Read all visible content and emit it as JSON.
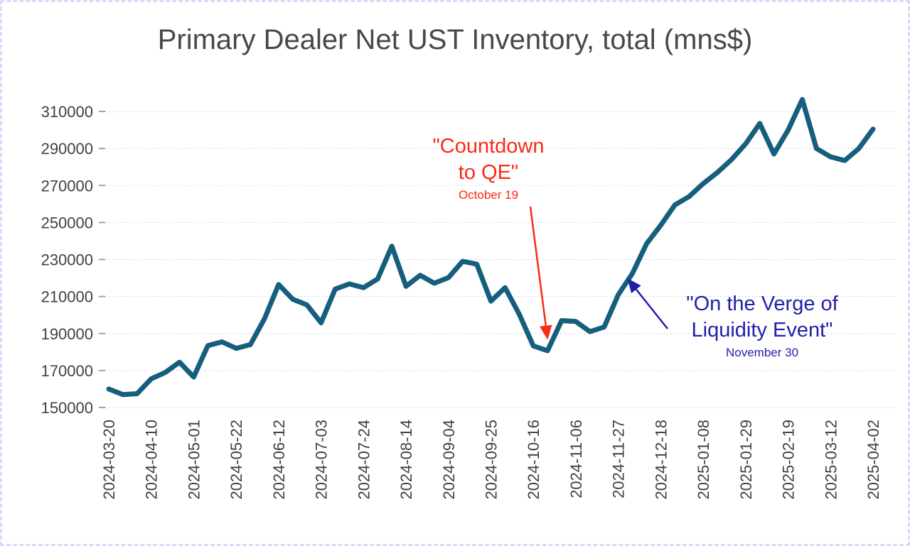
{
  "title": "Primary Dealer Net UST Inventory, total (mns$)",
  "chart_data": {
    "type": "line",
    "series_name": "Primary Dealer Net UST Inventory total (mns$)",
    "line_color": "#165e7d",
    "grid": true,
    "ylim": [
      150000,
      310000
    ],
    "ytick_step": 20000,
    "xtick_every": 3,
    "x": [
      "2024-03-20",
      "2024-03-27",
      "2024-04-03",
      "2024-04-10",
      "2024-04-17",
      "2024-04-24",
      "2024-05-01",
      "2024-05-08",
      "2024-05-15",
      "2024-05-22",
      "2024-05-29",
      "2024-06-05",
      "2024-06-12",
      "2024-06-19",
      "2024-06-26",
      "2024-07-03",
      "2024-07-10",
      "2024-07-17",
      "2024-07-24",
      "2024-07-31",
      "2024-08-07",
      "2024-08-14",
      "2024-08-21",
      "2024-08-28",
      "2024-09-04",
      "2024-09-11",
      "2024-09-18",
      "2024-09-25",
      "2024-10-02",
      "2024-10-09",
      "2024-10-16",
      "2024-10-23",
      "2024-10-30",
      "2024-11-06",
      "2024-11-13",
      "2024-11-20",
      "2024-11-27",
      "2024-12-04",
      "2024-12-11",
      "2024-12-18",
      "2024-12-25",
      "2025-01-01",
      "2025-01-08",
      "2025-01-15",
      "2025-01-22",
      "2025-01-29",
      "2025-02-05",
      "2025-02-12",
      "2025-02-19",
      "2025-02-26",
      "2025-03-05",
      "2025-03-12",
      "2025-03-19",
      "2025-03-26",
      "2025-04-02"
    ],
    "values": [
      160000,
      157000,
      157500,
      165500,
      169000,
      174500,
      166500,
      183500,
      185500,
      182000,
      184000,
      198000,
      216500,
      208500,
      205500,
      195800,
      214000,
      216800,
      214800,
      219500,
      237200,
      215500,
      221500,
      217200,
      220200,
      229000,
      227500,
      207500,
      214800,
      200500,
      183300,
      180700,
      197000,
      196500,
      191000,
      193500,
      211000,
      222500,
      238500,
      248500,
      259500,
      264000,
      271000,
      277000,
      284000,
      292500,
      303500,
      287000,
      300000,
      316500,
      290000,
      285500,
      283500,
      290000,
      300500
    ],
    "annotations": [
      {
        "id": "countdown-to-qe",
        "text_line1": "\"Countdown",
        "text_line2": "to QE\"",
        "date_label": "October 19",
        "color": "#f92b16",
        "arrow_from": [
          746,
          291
        ],
        "arrow_to": [
          770,
          476
        ]
      },
      {
        "id": "liquidity-event",
        "text_line1": "\"On the Verge of",
        "text_line2": "Liquidity Event\"",
        "date_label": "November 30",
        "color": "#2121a8",
        "arrow_from": [
          939,
          463
        ],
        "arrow_to": [
          884,
          394
        ]
      }
    ]
  }
}
